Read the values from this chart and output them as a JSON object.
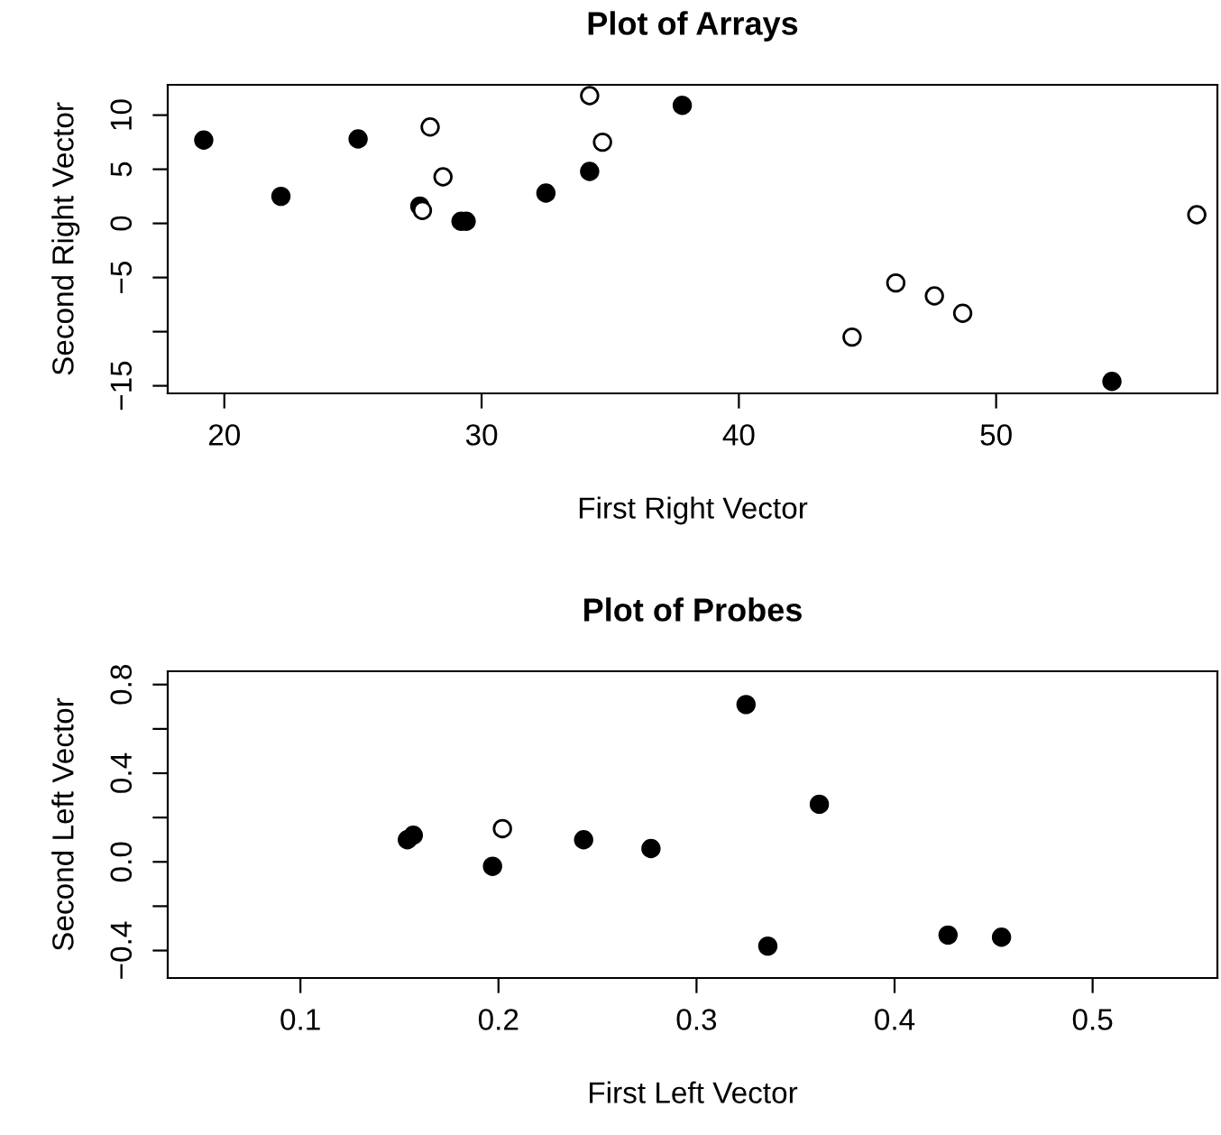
{
  "chart_data": [
    {
      "type": "scatter",
      "title": "Plot of Arrays",
      "xlabel": "First Right Vector",
      "ylabel": "Second Right Vector",
      "marker": "circle",
      "grid": false,
      "xlim": [
        17.8,
        58.6
      ],
      "xticks": [
        20,
        30,
        40,
        50
      ],
      "ylim": [
        -15.7,
        12.8
      ],
      "yticks": [
        {
          "value": -15,
          "label": "−15"
        },
        {
          "value": -10,
          "label": null
        },
        {
          "value": -5,
          "label": "−5"
        },
        0,
        5,
        10
      ],
      "series": [
        {
          "color": "#000000",
          "x": [
            19.2,
            22.2,
            25.2,
            27.6,
            29.2,
            29.4,
            32.5,
            34.2,
            37.8,
            54.5
          ],
          "values": [
            7.7,
            2.5,
            7.8,
            1.6,
            0.2,
            0.2,
            2.8,
            4.8,
            10.9,
            -14.6
          ]
        },
        {
          "color": "#ffffff",
          "x": [
            27.7,
            28.0,
            28.5,
            34.2,
            34.7,
            44.4,
            46.1,
            47.6,
            48.7,
            57.8
          ],
          "values": [
            1.2,
            8.9,
            4.3,
            11.8,
            7.5,
            -10.5,
            -5.5,
            -6.7,
            -8.3,
            0.8
          ]
        }
      ]
    },
    {
      "type": "scatter",
      "title": "Plot of Probes",
      "xlabel": "First Left Vector",
      "ylabel": "Second Left Vector",
      "marker": "circle",
      "grid": false,
      "xlim": [
        0.033,
        0.563
      ],
      "xticks": [
        0.1,
        0.2,
        0.3,
        0.4,
        0.5
      ],
      "ylim": [
        -0.524,
        0.86
      ],
      "yticks": [
        {
          "value": -0.4,
          "label": "−0.4"
        },
        {
          "value": -0.2,
          "label": null
        },
        {
          "value": 0.0,
          "label": "0.0"
        },
        {
          "value": 0.2,
          "label": null
        },
        0.4,
        {
          "value": 0.6,
          "label": null
        },
        0.8
      ],
      "series": [
        {
          "color": "#000000",
          "x": [
            0.154,
            0.157,
            0.197,
            0.243,
            0.277,
            0.325,
            0.336,
            0.362,
            0.427,
            0.454
          ],
          "values": [
            0.1,
            0.12,
            -0.02,
            0.1,
            0.06,
            0.71,
            -0.38,
            0.26,
            -0.33,
            -0.34
          ]
        },
        {
          "color": "#ffffff",
          "x": [
            0.202
          ],
          "values": [
            0.15
          ]
        }
      ]
    }
  ]
}
